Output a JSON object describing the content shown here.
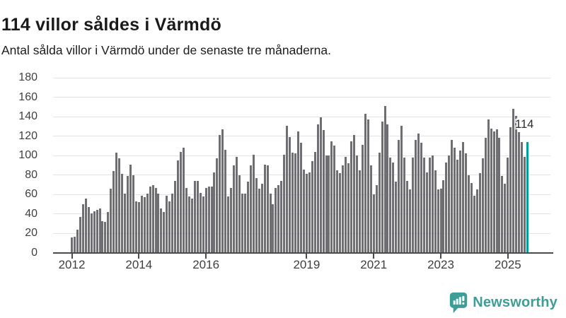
{
  "header": {
    "title": "114 villor såldes i Värmdö",
    "subtitle": "Antal sålda villor i Värmdö under de senaste tre månaderna."
  },
  "chart_data": {
    "type": "bar",
    "title": "114 villor såldes i Värmdö",
    "subtitle": "Antal sålda villor i Värmdö under de senaste tre månaderna.",
    "xlabel": "",
    "ylabel": "",
    "ylim": [
      0,
      180
    ],
    "yticks": [
      0,
      20,
      40,
      60,
      80,
      100,
      120,
      140,
      160,
      180
    ],
    "grid": true,
    "frequency": "monthly",
    "start_month": "2012-01",
    "values": [
      16,
      17,
      24,
      37,
      50,
      56,
      47,
      41,
      43,
      44,
      46,
      33,
      32,
      42,
      66,
      84,
      103,
      97,
      81,
      61,
      79,
      91,
      80,
      53,
      52,
      59,
      57,
      61,
      68,
      70,
      67,
      61,
      46,
      42,
      59,
      53,
      61,
      74,
      95,
      104,
      108,
      67,
      58,
      56,
      74,
      74,
      62,
      58,
      67,
      68,
      68,
      83,
      97,
      121,
      127,
      106,
      58,
      67,
      90,
      99,
      80,
      61,
      61,
      73,
      90,
      101,
      77,
      66,
      71,
      91,
      90,
      61,
      50,
      67,
      70,
      74,
      101,
      131,
      119,
      103,
      102,
      125,
      113,
      86,
      81,
      83,
      94,
      104,
      132,
      139,
      126,
      100,
      100,
      115,
      110,
      85,
      82,
      90,
      99,
      92,
      115,
      121,
      100,
      85,
      111,
      143,
      137,
      90,
      60,
      70,
      103,
      135,
      151,
      132,
      98,
      93,
      73,
      116,
      131,
      98,
      74,
      65,
      98,
      116,
      123,
      113,
      98,
      83,
      98,
      100,
      85,
      65,
      66,
      75,
      93,
      100,
      116,
      108,
      96,
      105,
      114,
      102,
      80,
      72,
      59,
      65,
      82,
      97,
      118,
      137,
      128,
      125,
      127,
      118,
      79,
      71,
      98,
      129,
      148,
      141,
      124,
      114,
      99,
      114
    ],
    "xticks": [
      {
        "label": "2012",
        "month_index": 0
      },
      {
        "label": "2014",
        "month_index": 24
      },
      {
        "label": "2016",
        "month_index": 48
      },
      {
        "label": "2019",
        "month_index": 84
      },
      {
        "label": "2021",
        "month_index": 108
      },
      {
        "label": "2023",
        "month_index": 132
      },
      {
        "label": "2025",
        "month_index": 156
      }
    ],
    "bar_color": "#6e6e73",
    "highlight_color": "#00a09a",
    "highlight_last": true,
    "highlight_value_label": "114",
    "legend": "none"
  },
  "annotation": {
    "label": "114"
  },
  "footer": {
    "brand": "Newsworthy",
    "brand_color": "#3c9e96"
  }
}
